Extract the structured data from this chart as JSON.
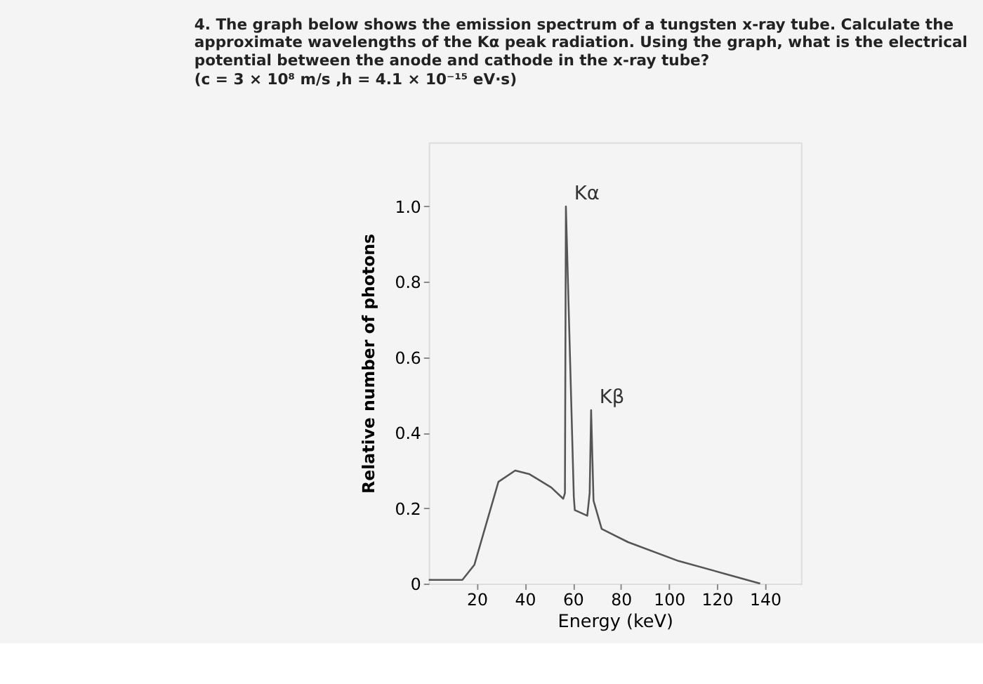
{
  "chart_data": {
    "type": "line",
    "title": "4. The graph below shows the emission spectrum of a tungsten x-ray tube. Calculate the approximate wavelengths of the Kα peak radiation. Using the graph, what is the electrical potential between the anode and cathode in the x-ray tube?",
    "subtitle": "(c = 3 × 10⁸ m/s ,h = 4.1 × 10⁻¹⁵ eV·s)",
    "xlabel": "Energy (keV)",
    "ylabel": "Relative number of photons",
    "series": [
      {
        "color": "#555555",
        "x": [
          0,
          14,
          19,
          24,
          29,
          36,
          42,
          51,
          56,
          56.7,
          57.1,
          60.4,
          60.8,
          66,
          67,
          67.6,
          68.6,
          72,
          83,
          104,
          124,
          138
        ],
        "values": [
          0.01,
          0.01,
          0.05,
          0.16,
          0.27,
          0.3,
          0.29,
          0.255,
          0.225,
          0.24,
          1.0,
          0.23,
          0.195,
          0.18,
          0.24,
          0.46,
          0.22,
          0.145,
          0.11,
          0.06,
          0.025,
          0.0
        ]
      }
    ],
    "xlim": [
      0,
      155
    ],
    "ylim": [
      0,
      1.17
    ],
    "xticks": [
      20,
      40,
      60,
      80,
      100,
      120,
      140
    ],
    "yticks": [
      0,
      {
        "value": 0.2,
        "label": "0.2"
      },
      {
        "value": 0.4,
        "label": "0.4"
      },
      {
        "value": 0.6,
        "label": "0.6"
      },
      {
        "value": 0.8,
        "label": "0.8"
      },
      {
        "value": 1.0,
        "label": "1.0"
      }
    ],
    "annotations": [
      {
        "text": "Kα",
        "x": 57.1,
        "y": 1.0
      },
      {
        "text": "Kβ",
        "x": 67.6,
        "y": 0.46
      }
    ],
    "grid": false,
    "marker": "none",
    "line_style": "solid"
  }
}
